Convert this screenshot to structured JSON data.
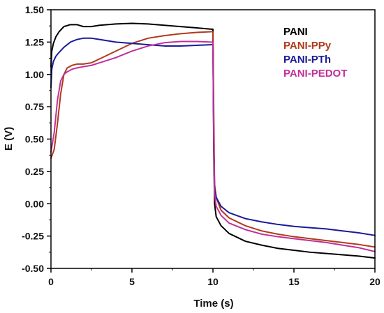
{
  "chart_data": {
    "type": "line",
    "xlabel": "Time (s)",
    "ylabel": "E (V)",
    "xlim": [
      0,
      20
    ],
    "ylim": [
      -0.5,
      1.5
    ],
    "xticks": [
      "0",
      "5",
      "10",
      "15",
      "20"
    ],
    "yticks": [
      "-0.50",
      "-0.25",
      "0.00",
      "0.25",
      "0.50",
      "0.75",
      "1.00",
      "1.25",
      "1.50"
    ],
    "grid": false,
    "legend_position": "top-right",
    "series": [
      {
        "name": "PANI",
        "color": "#000000",
        "x": [
          0,
          0.05,
          0.15,
          0.3,
          0.5,
          0.8,
          1.2,
          1.6,
          2.0,
          2.5,
          3.0,
          4.0,
          5.0,
          6.0,
          7.0,
          8.0,
          9.0,
          9.9,
          10.0,
          10.05,
          10.1,
          10.2,
          10.5,
          11,
          12,
          13,
          14,
          15,
          16,
          17,
          18,
          19,
          20
        ],
        "y": [
          1.06,
          1.18,
          1.24,
          1.29,
          1.33,
          1.37,
          1.385,
          1.385,
          1.37,
          1.37,
          1.38,
          1.39,
          1.395,
          1.39,
          1.38,
          1.37,
          1.36,
          1.35,
          1.35,
          0.4,
          0.0,
          -0.1,
          -0.17,
          -0.23,
          -0.29,
          -0.32,
          -0.345,
          -0.36,
          -0.375,
          -0.385,
          -0.395,
          -0.405,
          -0.42
        ]
      },
      {
        "name": "PANI-PPy",
        "color": "#b03a1a",
        "x": [
          0,
          0.2,
          0.4,
          0.6,
          0.8,
          1.0,
          1.3,
          1.6,
          2.0,
          2.5,
          3.0,
          4.0,
          5.0,
          6.0,
          7.0,
          8.0,
          9.0,
          9.9,
          10.0,
          10.05,
          10.1,
          10.2,
          10.5,
          11,
          12,
          13,
          14,
          15,
          16,
          17,
          18,
          19,
          20
        ],
        "y": [
          0.35,
          0.42,
          0.62,
          0.85,
          1.0,
          1.05,
          1.07,
          1.08,
          1.08,
          1.09,
          1.12,
          1.18,
          1.24,
          1.28,
          1.3,
          1.315,
          1.325,
          1.33,
          1.33,
          0.7,
          0.15,
          0.05,
          -0.05,
          -0.11,
          -0.17,
          -0.21,
          -0.235,
          -0.255,
          -0.27,
          -0.285,
          -0.3,
          -0.315,
          -0.335
        ]
      },
      {
        "name": "PANI-PTh",
        "color": "#1a1a9a",
        "x": [
          0,
          0.05,
          0.15,
          0.3,
          0.5,
          0.8,
          1.2,
          1.6,
          2.0,
          2.5,
          3.0,
          4.0,
          5.0,
          6.0,
          7.0,
          8.0,
          9.0,
          9.9,
          10.0,
          10.05,
          10.1,
          10.2,
          10.5,
          11,
          12,
          13,
          14,
          15,
          16,
          17,
          18,
          19,
          20
        ],
        "y": [
          0.9,
          1.04,
          1.1,
          1.14,
          1.17,
          1.21,
          1.25,
          1.27,
          1.28,
          1.28,
          1.27,
          1.25,
          1.24,
          1.23,
          1.22,
          1.22,
          1.225,
          1.23,
          1.23,
          0.5,
          0.12,
          0.05,
          -0.02,
          -0.07,
          -0.115,
          -0.14,
          -0.16,
          -0.175,
          -0.185,
          -0.195,
          -0.21,
          -0.225,
          -0.245
        ]
      },
      {
        "name": "PANI-PEDOT",
        "color": "#c0309a",
        "x": [
          0,
          0.2,
          0.4,
          0.6,
          0.8,
          1.0,
          1.3,
          1.6,
          2.0,
          2.5,
          3.0,
          4.0,
          5.0,
          6.0,
          7.0,
          8.0,
          9.0,
          9.9,
          10.0,
          10.05,
          10.1,
          10.2,
          10.5,
          11,
          12,
          13,
          14,
          15,
          16,
          17,
          18,
          19,
          20
        ],
        "y": [
          0.4,
          0.55,
          0.8,
          0.95,
          1.0,
          1.02,
          1.04,
          1.05,
          1.06,
          1.07,
          1.09,
          1.13,
          1.18,
          1.22,
          1.245,
          1.255,
          1.255,
          1.25,
          1.25,
          0.55,
          0.08,
          -0.02,
          -0.09,
          -0.15,
          -0.2,
          -0.235,
          -0.255,
          -0.27,
          -0.285,
          -0.3,
          -0.32,
          -0.34,
          -0.37
        ]
      }
    ]
  }
}
